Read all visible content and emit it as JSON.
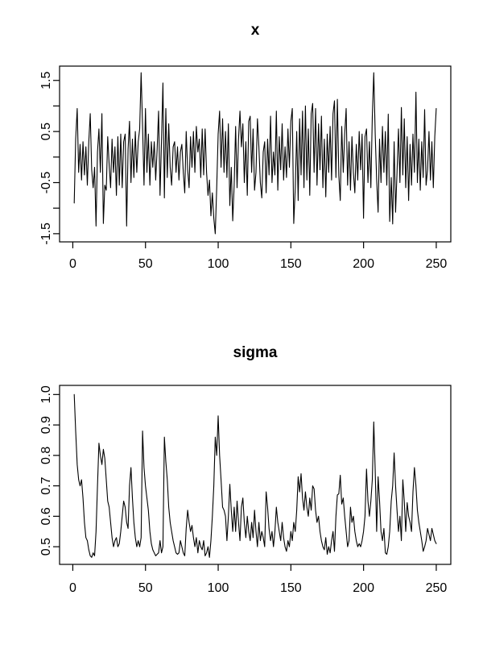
{
  "page": {
    "background": "#ffffff",
    "foreground": "#000000"
  },
  "chart_data": [
    {
      "type": "line",
      "title": "x",
      "series_name": "x",
      "line_color": "#000000",
      "grid": false,
      "legend": "none",
      "x_start": 1,
      "n_points": 250,
      "xlim": [
        -9.1,
        260
      ],
      "ylim": [
        -1.66,
        1.78
      ],
      "x_ticks": [
        0,
        50,
        100,
        150,
        200,
        250
      ],
      "x_tick_labels": [
        "0",
        "50",
        "100",
        "150",
        "200",
        "250"
      ],
      "y_ticks": [
        -1.5,
        -1.0,
        -0.5,
        0,
        0.5,
        1.0,
        1.5
      ],
      "y_tick_labels": [
        "-1.5",
        "",
        "-0.5",
        "",
        "0.5",
        "",
        "1.5"
      ],
      "values": [
        -0.9,
        0.35,
        0.95,
        -0.3,
        0.25,
        -0.45,
        0.3,
        -0.35,
        0.2,
        -0.55,
        0.3,
        0.85,
        -0.25,
        -0.6,
        -0.2,
        -1.35,
        0.1,
        0.55,
        -0.3,
        0.85,
        -1.3,
        -0.55,
        -0.65,
        0.4,
        -0.15,
        -0.6,
        0.35,
        -0.3,
        0.2,
        -0.75,
        0.4,
        -0.55,
        0.45,
        -0.6,
        0.3,
        0.45,
        -1.35,
        0.15,
        0.7,
        -0.5,
        0.35,
        -0.4,
        0.5,
        -0.3,
        0.3,
        0.55,
        1.65,
        0.6,
        -0.55,
        0.95,
        -0.3,
        0.45,
        -0.55,
        0.3,
        -0.2,
        0.3,
        -0.45,
        0.15,
        0.9,
        -0.75,
        0.3,
        1.45,
        -0.8,
        0.95,
        -0.4,
        0.65,
        -0.2,
        -0.55,
        0.2,
        0.3,
        -0.3,
        0.2,
        -0.45,
        0.1,
        0.25,
        -0.3,
        -0.7,
        0.5,
        -0.25,
        -0.6,
        0.4,
        -0.2,
        0.5,
        -0.3,
        0.6,
        0.1,
        0.35,
        -0.4,
        0.55,
        -0.35,
        0.55,
        -0.3,
        -0.75,
        -0.45,
        -1.15,
        -0.7,
        -1.2,
        -1.5,
        -0.6,
        0.45,
        0.9,
        -0.2,
        0.75,
        -0.3,
        0.5,
        -0.4,
        0.65,
        -0.95,
        -0.2,
        -1.25,
        -0.55,
        0.6,
        -0.6,
        0.35,
        0.9,
        0.2,
        0.65,
        -0.5,
        0.3,
        -0.75,
        0.7,
        0.8,
        -0.3,
        0.55,
        -0.65,
        -0.3,
        0.75,
        0.2,
        -0.5,
        -0.8,
        0.1,
        0.3,
        -0.7,
        0.35,
        -0.35,
        0.8,
        -0.5,
        0.1,
        -0.35,
        0.9,
        -0.65,
        0.4,
        -0.25,
        0.65,
        -0.45,
        0.2,
        -0.4,
        0.55,
        -0.2,
        0.7,
        0.95,
        -1.3,
        -0.6,
        0.5,
        -0.85,
        0.75,
        -0.35,
        0.9,
        -0.6,
        1.0,
        -0.45,
        0.55,
        -0.75,
        0.85,
        1.05,
        -0.3,
        0.95,
        -0.55,
        0.65,
        -0.25,
        0.8,
        -0.6,
        0.35,
        -0.78,
        0.45,
        -0.3,
        0.6,
        -0.45,
        0.85,
        1.1,
        -0.4,
        1.13,
        -0.36,
        -0.85,
        0.6,
        -0.3,
        0.45,
        0.95,
        -0.55,
        0.3,
        -0.65,
        0.4,
        -0.3,
        -0.7,
        0.25,
        -0.45,
        0.5,
        -0.25,
        0.45,
        -1.2,
        0.4,
        0.55,
        -0.5,
        0.3,
        -0.6,
        0.8,
        1.65,
        0.45,
        -0.45,
        -1.08,
        0.35,
        -0.5,
        0.6,
        -0.3,
        0.5,
        -0.55,
        0.84,
        -1.26,
        -0.4,
        -1.31,
        0.3,
        -1.08,
        -0.3,
        0.55,
        -0.5,
        0.97,
        -0.35,
        0.75,
        -0.6,
        0.4,
        -0.85,
        0.25,
        -0.55,
        0.45,
        -0.3,
        1.27,
        -0.5,
        0.35,
        -0.65,
        0.3,
        -0.4,
        0.93,
        -0.55,
        -0.25,
        0.5,
        -0.45,
        0.3,
        -0.6,
        0.4,
        0.95
      ]
    },
    {
      "type": "line",
      "title": "sigma",
      "series_name": "sigma",
      "line_color": "#000000",
      "grid": false,
      "legend": "none",
      "x_start": 1,
      "n_points": 250,
      "xlim": [
        -9.1,
        260
      ],
      "ylim": [
        0.442,
        1.03
      ],
      "x_ticks": [
        0,
        50,
        100,
        150,
        200,
        250
      ],
      "x_tick_labels": [
        "0",
        "50",
        "100",
        "150",
        "200",
        "250"
      ],
      "y_ticks": [
        0.5,
        0.6,
        0.7,
        0.8,
        0.9,
        1.0
      ],
      "y_tick_labels": [
        "0.5",
        "0.6",
        "0.7",
        "0.8",
        "0.9",
        "1.0"
      ],
      "values": [
        1.0,
        0.88,
        0.77,
        0.72,
        0.7,
        0.72,
        0.66,
        0.58,
        0.53,
        0.52,
        0.49,
        0.47,
        0.465,
        0.48,
        0.47,
        0.55,
        0.7,
        0.84,
        0.8,
        0.77,
        0.82,
        0.79,
        0.72,
        0.65,
        0.63,
        0.58,
        0.53,
        0.5,
        0.52,
        0.53,
        0.5,
        0.51,
        0.55,
        0.6,
        0.65,
        0.63,
        0.58,
        0.56,
        0.7,
        0.76,
        0.66,
        0.58,
        0.53,
        0.5,
        0.52,
        0.5,
        0.53,
        0.88,
        0.76,
        0.7,
        0.66,
        0.62,
        0.55,
        0.51,
        0.49,
        0.48,
        0.47,
        0.475,
        0.48,
        0.52,
        0.48,
        0.5,
        0.86,
        0.78,
        0.72,
        0.63,
        0.58,
        0.55,
        0.52,
        0.5,
        0.48,
        0.475,
        0.48,
        0.52,
        0.5,
        0.48,
        0.47,
        0.56,
        0.62,
        0.58,
        0.55,
        0.57,
        0.53,
        0.5,
        0.53,
        0.48,
        0.52,
        0.5,
        0.49,
        0.52,
        0.47,
        0.48,
        0.5,
        0.465,
        0.52,
        0.6,
        0.7,
        0.86,
        0.8,
        0.93,
        0.8,
        0.72,
        0.63,
        0.62,
        0.6,
        0.52,
        0.6,
        0.705,
        0.62,
        0.55,
        0.63,
        0.55,
        0.65,
        0.58,
        0.52,
        0.63,
        0.66,
        0.58,
        0.53,
        0.6,
        0.55,
        0.52,
        0.58,
        0.53,
        0.62,
        0.55,
        0.5,
        0.58,
        0.52,
        0.55,
        0.53,
        0.5,
        0.68,
        0.63,
        0.56,
        0.52,
        0.55,
        0.5,
        0.55,
        0.63,
        0.58,
        0.55,
        0.52,
        0.58,
        0.53,
        0.5,
        0.485,
        0.52,
        0.5,
        0.55,
        0.52,
        0.58,
        0.55,
        0.62,
        0.73,
        0.68,
        0.74,
        0.66,
        0.62,
        0.68,
        0.63,
        0.6,
        0.66,
        0.62,
        0.7,
        0.69,
        0.62,
        0.58,
        0.6,
        0.55,
        0.52,
        0.5,
        0.49,
        0.53,
        0.475,
        0.5,
        0.48,
        0.52,
        0.55,
        0.485,
        0.6,
        0.67,
        0.674,
        0.735,
        0.64,
        0.66,
        0.6,
        0.55,
        0.5,
        0.52,
        0.63,
        0.58,
        0.6,
        0.55,
        0.52,
        0.5,
        0.51,
        0.5,
        0.52,
        0.55,
        0.6,
        0.755,
        0.65,
        0.6,
        0.65,
        0.72,
        0.91,
        0.75,
        0.55,
        0.73,
        0.65,
        0.55,
        0.52,
        0.56,
        0.48,
        0.475,
        0.5,
        0.55,
        0.65,
        0.7,
        0.808,
        0.7,
        0.62,
        0.55,
        0.6,
        0.52,
        0.72,
        0.65,
        0.55,
        0.645,
        0.6,
        0.58,
        0.55,
        0.68,
        0.76,
        0.7,
        0.62,
        0.58,
        0.55,
        0.52,
        0.485,
        0.5,
        0.52,
        0.56,
        0.54,
        0.52,
        0.56,
        0.54,
        0.52,
        0.51
      ]
    }
  ]
}
